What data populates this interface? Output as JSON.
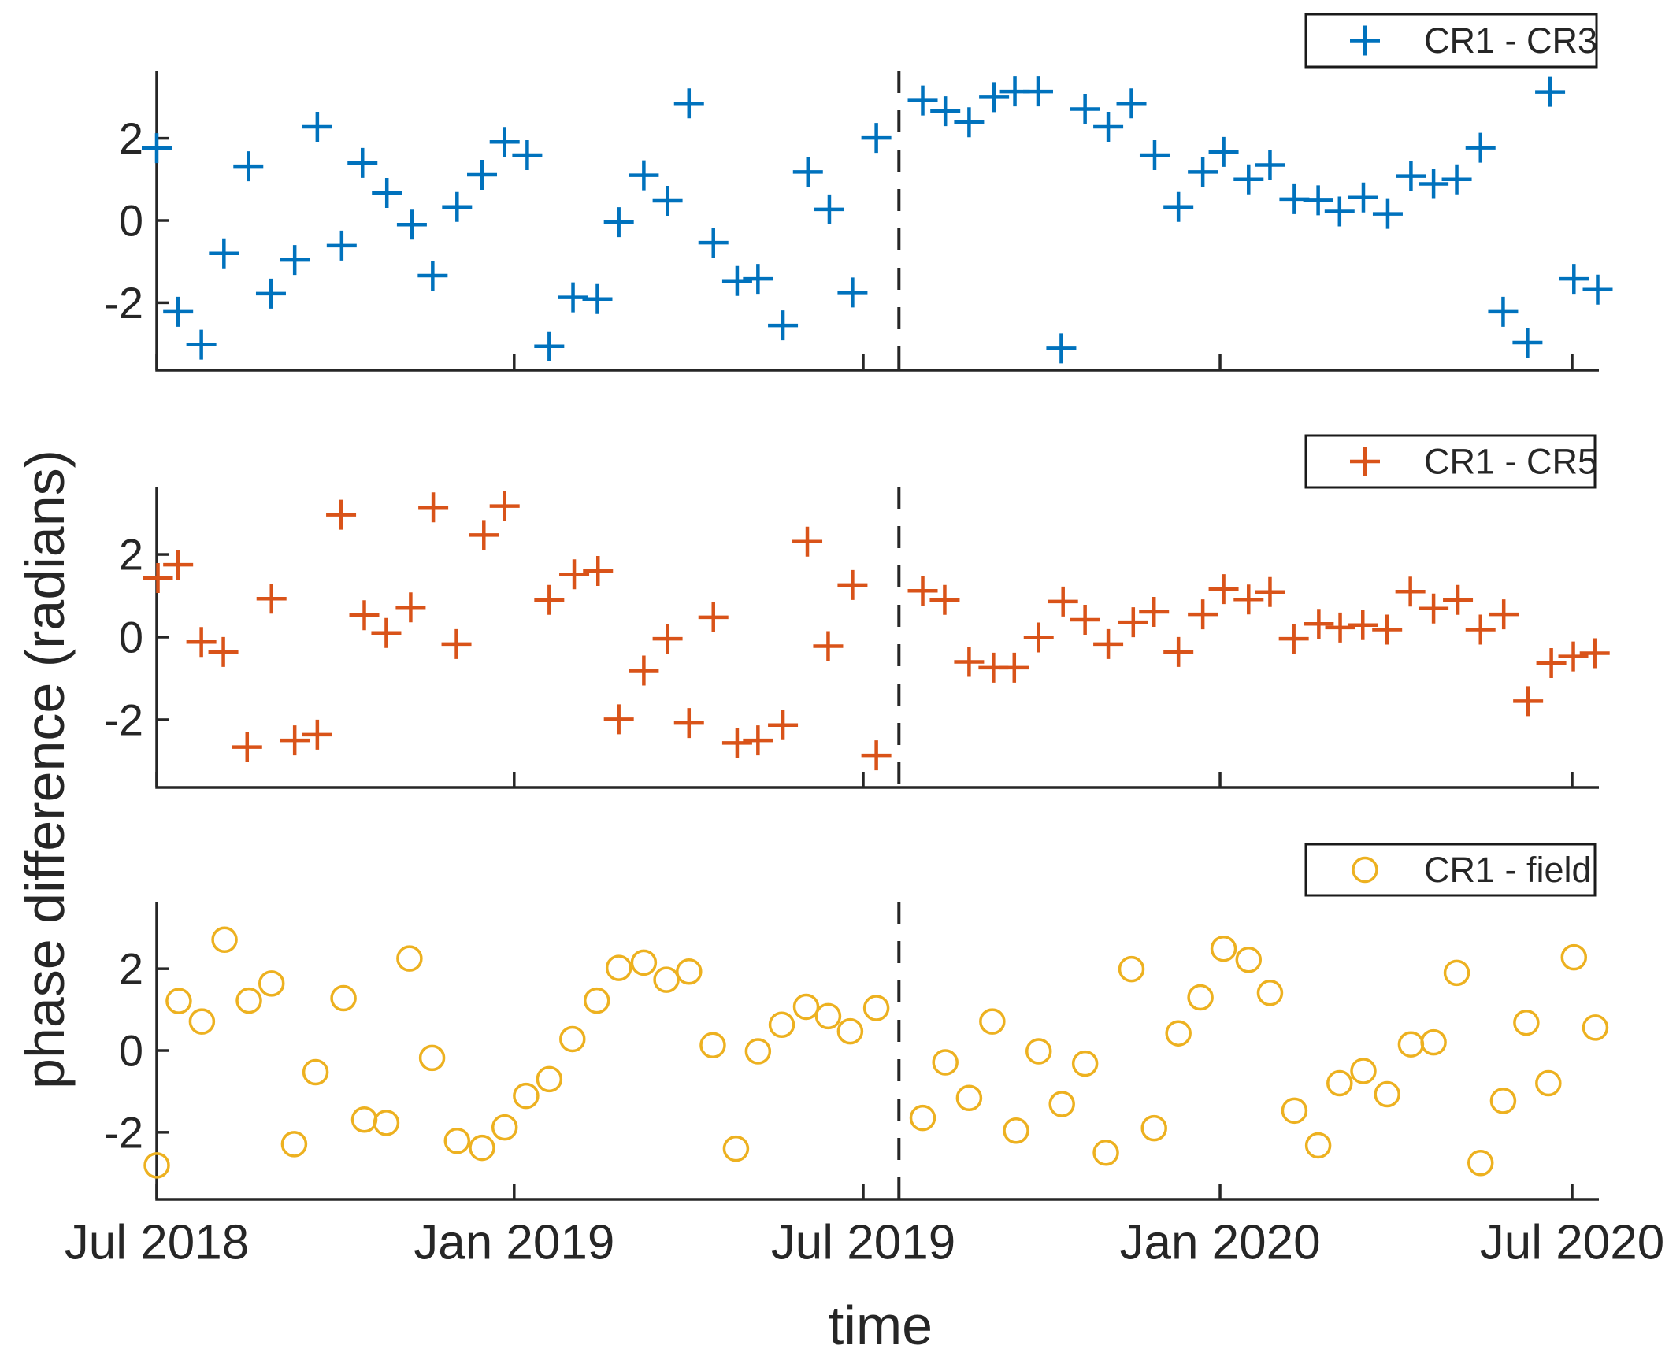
{
  "figure": {
    "ylabel": "phase difference (radians)",
    "xlabel": "time",
    "colors": {
      "series_blue": "#0072BD",
      "series_orange": "#D95319",
      "series_yellow": "#EDB120",
      "axis": "#262626",
      "legend_border": "#1a1a1a",
      "background": "#ffffff"
    }
  },
  "x_axis": {
    "tick_labels": [
      "Jul 2018",
      "Jan 2019",
      "Jul 2019",
      "Jan 2020",
      "Jul 2020"
    ],
    "tick_months": [
      0,
      6.01,
      11.88,
      17.88,
      23.8
    ],
    "range_months": [
      0,
      24.25
    ],
    "dashed_vertical_line_month": 12.48
  },
  "y_axis": {
    "tick_labels": [
      "-2",
      "0",
      "2"
    ],
    "tick_values": [
      -2,
      0,
      2
    ],
    "range": [
      -3.64,
      3.64
    ]
  },
  "chart_data": [
    {
      "type": "scatter",
      "id": "cr1-cr3",
      "legend": "CR1 - CR3",
      "marker": "plus",
      "color": "#0072BD",
      "x_unit": "months since Jul 2018",
      "ylim": [
        -3.64,
        3.64
      ],
      "points": [
        [
          0.0,
          1.76
        ],
        [
          0.36,
          -2.22
        ],
        [
          0.75,
          -3.02
        ],
        [
          1.13,
          -0.8
        ],
        [
          1.54,
          1.32
        ],
        [
          1.92,
          -1.78
        ],
        [
          2.32,
          -0.96
        ],
        [
          2.7,
          2.28
        ],
        [
          3.11,
          -0.61
        ],
        [
          3.46,
          1.4
        ],
        [
          3.87,
          0.67
        ],
        [
          4.29,
          -0.1
        ],
        [
          4.64,
          -1.34
        ],
        [
          5.05,
          0.33
        ],
        [
          5.47,
          1.11
        ],
        [
          5.85,
          1.91
        ],
        [
          6.23,
          1.59
        ],
        [
          6.6,
          -3.06
        ],
        [
          7.0,
          -1.87
        ],
        [
          7.41,
          -1.91
        ],
        [
          7.77,
          -0.04
        ],
        [
          8.19,
          1.1
        ],
        [
          8.59,
          0.48
        ],
        [
          8.95,
          2.85
        ],
        [
          9.36,
          -0.54
        ],
        [
          9.76,
          -1.47
        ],
        [
          10.11,
          -1.42
        ],
        [
          10.53,
          -2.55
        ],
        [
          10.95,
          1.18
        ],
        [
          11.31,
          0.27
        ],
        [
          11.7,
          -1.75
        ],
        [
          12.1,
          2.01
        ],
        [
          12.88,
          2.92
        ],
        [
          13.26,
          2.66
        ],
        [
          13.66,
          2.39
        ],
        [
          14.08,
          3.0
        ],
        [
          14.43,
          3.14
        ],
        [
          14.82,
          3.14
        ],
        [
          15.21,
          -3.11
        ],
        [
          15.61,
          2.71
        ],
        [
          16.0,
          2.28
        ],
        [
          16.39,
          2.85
        ],
        [
          16.78,
          1.59
        ],
        [
          17.18,
          0.33
        ],
        [
          17.59,
          1.18
        ],
        [
          17.94,
          1.67
        ],
        [
          18.36,
          1.0
        ],
        [
          18.72,
          1.35
        ],
        [
          19.13,
          0.52
        ],
        [
          19.53,
          0.49
        ],
        [
          19.89,
          0.22
        ],
        [
          20.29,
          0.56
        ],
        [
          20.7,
          0.16
        ],
        [
          21.09,
          1.08
        ],
        [
          21.47,
          0.89
        ],
        [
          21.86,
          1.0
        ],
        [
          22.26,
          1.77
        ],
        [
          22.64,
          -2.22
        ],
        [
          23.05,
          -2.97
        ],
        [
          23.43,
          3.13
        ],
        [
          23.83,
          -1.42
        ],
        [
          24.23,
          -1.68
        ]
      ]
    },
    {
      "type": "scatter",
      "id": "cr1-cr5",
      "legend": "CR1 - CR5",
      "marker": "plus",
      "color": "#D95319",
      "x_unit": "months since Jul 2018",
      "ylim": [
        -3.64,
        3.64
      ],
      "points": [
        [
          0.02,
          1.43
        ],
        [
          0.36,
          1.75
        ],
        [
          0.75,
          -0.12
        ],
        [
          1.12,
          -0.36
        ],
        [
          1.52,
          -2.66
        ],
        [
          1.93,
          0.93
        ],
        [
          2.32,
          -2.5
        ],
        [
          2.7,
          -2.36
        ],
        [
          3.1,
          2.96
        ],
        [
          3.49,
          0.53
        ],
        [
          3.86,
          0.1
        ],
        [
          4.27,
          0.72
        ],
        [
          4.65,
          3.14
        ],
        [
          5.04,
          -0.17
        ],
        [
          5.5,
          2.47
        ],
        [
          5.85,
          3.17
        ],
        [
          6.6,
          0.9
        ],
        [
          7.02,
          1.52
        ],
        [
          7.42,
          1.6
        ],
        [
          7.77,
          -1.99
        ],
        [
          8.19,
          -0.81
        ],
        [
          8.59,
          -0.04
        ],
        [
          8.95,
          -2.08
        ],
        [
          9.36,
          0.48
        ],
        [
          9.76,
          -2.56
        ],
        [
          10.11,
          -2.5
        ],
        [
          10.53,
          -2.13
        ],
        [
          10.94,
          2.31
        ],
        [
          11.29,
          -0.22
        ],
        [
          11.7,
          1.26
        ],
        [
          12.1,
          -2.86
        ],
        [
          12.88,
          1.12
        ],
        [
          13.25,
          0.9
        ],
        [
          13.66,
          -0.6
        ],
        [
          14.07,
          -0.74
        ],
        [
          14.42,
          -0.74
        ],
        [
          14.83,
          -0.01
        ],
        [
          15.24,
          0.86
        ],
        [
          15.61,
          0.42
        ],
        [
          16.0,
          -0.17
        ],
        [
          16.42,
          0.36
        ],
        [
          16.77,
          0.61
        ],
        [
          17.18,
          -0.36
        ],
        [
          17.59,
          0.55
        ],
        [
          17.94,
          1.16
        ],
        [
          18.36,
          0.91
        ],
        [
          18.72,
          1.09
        ],
        [
          19.12,
          -0.04
        ],
        [
          19.54,
          0.32
        ],
        [
          19.9,
          0.23
        ],
        [
          20.28,
          0.29
        ],
        [
          20.69,
          0.18
        ],
        [
          21.08,
          1.1
        ],
        [
          21.47,
          0.69
        ],
        [
          21.88,
          0.9
        ],
        [
          22.26,
          0.18
        ],
        [
          22.65,
          0.55
        ],
        [
          23.06,
          -1.55
        ],
        [
          23.45,
          -0.63
        ],
        [
          23.82,
          -0.47
        ],
        [
          24.18,
          -0.39
        ]
      ]
    },
    {
      "type": "scatter",
      "id": "cr1-field",
      "legend": "CR1 - field",
      "marker": "circle",
      "color": "#EDB120",
      "x_unit": "months since Jul 2018",
      "ylim": [
        -3.64,
        3.64
      ],
      "points": [
        [
          0.0,
          -2.81
        ],
        [
          0.37,
          1.21
        ],
        [
          0.76,
          0.71
        ],
        [
          1.14,
          2.71
        ],
        [
          1.55,
          1.22
        ],
        [
          1.93,
          1.64
        ],
        [
          2.31,
          -2.29
        ],
        [
          2.67,
          -0.53
        ],
        [
          3.14,
          1.28
        ],
        [
          3.49,
          -1.69
        ],
        [
          3.86,
          -1.77
        ],
        [
          4.25,
          2.25
        ],
        [
          4.63,
          -0.18
        ],
        [
          5.05,
          -2.21
        ],
        [
          5.47,
          -2.38
        ],
        [
          5.85,
          -1.88
        ],
        [
          6.21,
          -1.11
        ],
        [
          6.6,
          -0.7
        ],
        [
          6.99,
          0.28
        ],
        [
          7.4,
          1.22
        ],
        [
          7.77,
          2.02
        ],
        [
          8.19,
          2.15
        ],
        [
          8.57,
          1.73
        ],
        [
          8.95,
          1.93
        ],
        [
          9.35,
          0.13
        ],
        [
          9.74,
          -2.4
        ],
        [
          10.11,
          -0.02
        ],
        [
          10.51,
          0.63
        ],
        [
          10.92,
          1.07
        ],
        [
          11.29,
          0.84
        ],
        [
          11.66,
          0.47
        ],
        [
          12.1,
          1.04
        ],
        [
          12.88,
          -1.65
        ],
        [
          13.26,
          -0.29
        ],
        [
          13.66,
          -1.16
        ],
        [
          14.05,
          0.71
        ],
        [
          14.45,
          -1.96
        ],
        [
          14.83,
          -0.02
        ],
        [
          15.22,
          -1.31
        ],
        [
          15.61,
          -0.32
        ],
        [
          15.96,
          -2.5
        ],
        [
          16.39,
          1.99
        ],
        [
          16.77,
          -1.9
        ],
        [
          17.18,
          0.42
        ],
        [
          17.55,
          1.3
        ],
        [
          17.94,
          2.49
        ],
        [
          18.36,
          2.22
        ],
        [
          18.72,
          1.41
        ],
        [
          19.13,
          -1.47
        ],
        [
          19.53,
          -2.32
        ],
        [
          19.89,
          -0.8
        ],
        [
          20.29,
          -0.5
        ],
        [
          20.69,
          -1.07
        ],
        [
          21.09,
          0.15
        ],
        [
          21.47,
          0.2
        ],
        [
          21.86,
          1.9
        ],
        [
          22.26,
          -2.75
        ],
        [
          22.64,
          -1.23
        ],
        [
          23.03,
          0.68
        ],
        [
          23.4,
          -0.8
        ],
        [
          23.83,
          2.28
        ],
        [
          24.19,
          0.56
        ]
      ]
    }
  ]
}
